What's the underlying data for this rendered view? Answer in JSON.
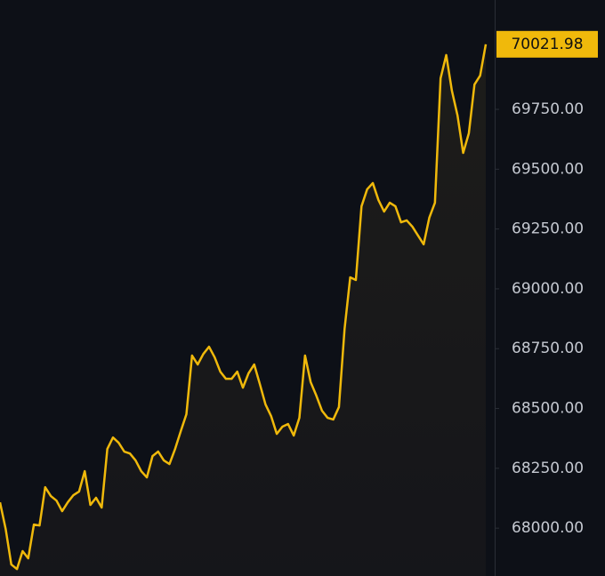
{
  "chart_data": {
    "type": "line",
    "series": [
      {
        "color": "#f0b90b",
        "values": [
          68108,
          67997,
          67848,
          67829,
          67904,
          67874,
          68015,
          68011,
          68171,
          68134,
          68115,
          68071,
          68108,
          68138,
          68153,
          68238,
          68097,
          68127,
          68086,
          68331,
          68379,
          68357,
          68320,
          68312,
          68283,
          68238,
          68212,
          68301,
          68320,
          68283,
          68268,
          68331,
          68405,
          68476,
          68721,
          68684,
          68728,
          68758,
          68714,
          68654,
          68624,
          68624,
          68654,
          68587,
          68647,
          68684,
          68602,
          68517,
          68468,
          68394,
          68424,
          68435,
          68387,
          68461,
          68721,
          68610,
          68554,
          68491,
          68461,
          68454,
          68506,
          68832,
          69048,
          69037,
          69345,
          69416,
          69442,
          69371,
          69323,
          69360,
          69345,
          69278,
          69286,
          69260,
          69223,
          69186,
          69297,
          69360,
          69880,
          69977,
          69828,
          69724,
          69568,
          69650,
          69854,
          69891,
          70021.98
        ]
      }
    ],
    "last_value": 70021.98,
    "ylim": [
      67800,
      70207
    ],
    "yticks": [
      {
        "value": 68000,
        "label": "68000.00"
      },
      {
        "value": 68250,
        "label": "68250.00"
      },
      {
        "value": 68500,
        "label": "68500.00"
      },
      {
        "value": 68750,
        "label": "68750.00"
      },
      {
        "value": 69000,
        "label": "69000.00"
      },
      {
        "value": 69250,
        "label": "69250.00"
      },
      {
        "value": 69500,
        "label": "69500.00"
      },
      {
        "value": 69750,
        "label": "69750.00"
      }
    ]
  }
}
